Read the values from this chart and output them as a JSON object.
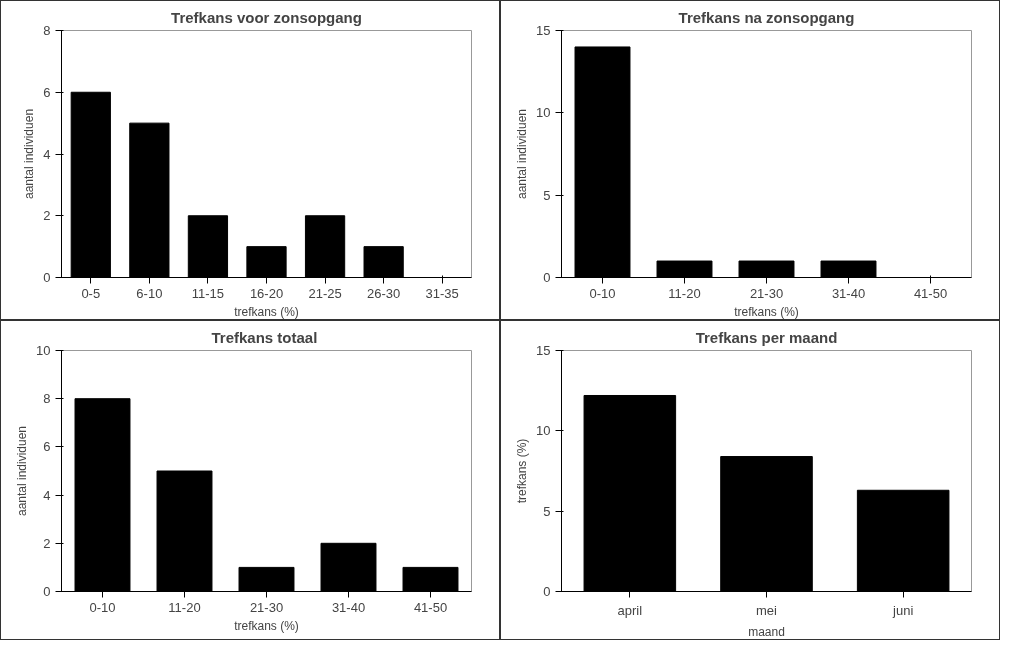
{
  "chart_data": [
    {
      "type": "bar",
      "title": "Trefkans voor zonsopgang",
      "xlabel": "trefkans (%)",
      "ylabel": "aantal individuen",
      "categories": [
        "0-5",
        "6-10",
        "11-15",
        "16-20",
        "21-25",
        "26-30",
        "31-35"
      ],
      "values": [
        6,
        5,
        2,
        1,
        2,
        1,
        0
      ],
      "color": "#000000",
      "ylim": [
        0,
        8
      ],
      "yticks": [
        0,
        2,
        4,
        6,
        8
      ],
      "grid": false
    },
    {
      "type": "bar",
      "title": "Trefkans na zonsopgang",
      "xlabel": "trefkans (%)",
      "ylabel": "aantal individuen",
      "categories": [
        "0-10",
        "11-20",
        "21-30",
        "31-40",
        "41-50"
      ],
      "values": [
        14,
        1,
        1,
        1,
        0
      ],
      "color": "#000000",
      "ylim": [
        0,
        15
      ],
      "yticks": [
        0,
        5,
        10,
        15
      ],
      "grid": false
    },
    {
      "type": "bar",
      "title": "Trefkans  totaal",
      "xlabel": "trefkans (%)",
      "ylabel": "aantal individuen",
      "categories": [
        "0-10",
        "11-20",
        "21-30",
        "31-40",
        "41-50"
      ],
      "values": [
        8,
        5,
        1,
        2,
        1
      ],
      "color": "#000000",
      "ylim": [
        0,
        10
      ],
      "yticks": [
        0,
        2,
        4,
        6,
        8,
        10
      ],
      "grid": false
    },
    {
      "type": "bar",
      "title": "Trefkans per maand",
      "xlabel": "maand",
      "ylabel": "trefkans (%)",
      "categories": [
        "april",
        "mei",
        "juni"
      ],
      "values": [
        12.2,
        8.4,
        6.3
      ],
      "color": "#000000",
      "ylim": [
        0,
        15
      ],
      "yticks": [
        0,
        5,
        10,
        15
      ],
      "grid": false
    }
  ]
}
